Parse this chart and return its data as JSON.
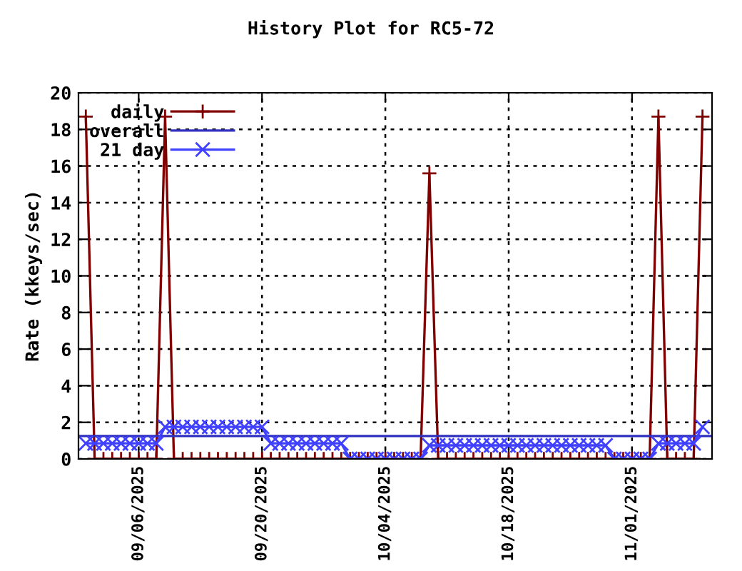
{
  "chart_data": {
    "type": "line",
    "title": "History Plot for RC5-72",
    "ylabel": "Rate (kkeys/sec)",
    "xlim": [
      "2025-08-30T04:00",
      "2025-11-10T02:00"
    ],
    "xticks": [
      {
        "value": "2025-09-06",
        "label": "09/06/2025"
      },
      {
        "value": "2025-09-20",
        "label": "09/20/2025"
      },
      {
        "value": "2025-10-04",
        "label": "10/04/2025"
      },
      {
        "value": "2025-10-18",
        "label": "10/18/2025"
      },
      {
        "value": "2025-11-01",
        "label": "11/01/2025"
      }
    ],
    "ylim": [
      0,
      20
    ],
    "yticks": [
      0,
      2,
      4,
      6,
      8,
      10,
      12,
      14,
      16,
      18,
      20
    ],
    "x": [
      "2025-08-31",
      "2025-09-01",
      "2025-09-02",
      "2025-09-03",
      "2025-09-04",
      "2025-09-05",
      "2025-09-06",
      "2025-09-07",
      "2025-09-08",
      "2025-09-09",
      "2025-09-10",
      "2025-09-11",
      "2025-09-12",
      "2025-09-13",
      "2025-09-14",
      "2025-09-15",
      "2025-09-16",
      "2025-09-17",
      "2025-09-18",
      "2025-09-19",
      "2025-09-20",
      "2025-09-21",
      "2025-09-22",
      "2025-09-23",
      "2025-09-24",
      "2025-09-25",
      "2025-09-26",
      "2025-09-27",
      "2025-09-28",
      "2025-09-29",
      "2025-09-30",
      "2025-10-01",
      "2025-10-02",
      "2025-10-03",
      "2025-10-04",
      "2025-10-05",
      "2025-10-06",
      "2025-10-07",
      "2025-10-08",
      "2025-10-09",
      "2025-10-10",
      "2025-10-11",
      "2025-10-12",
      "2025-10-13",
      "2025-10-14",
      "2025-10-15",
      "2025-10-16",
      "2025-10-17",
      "2025-10-18",
      "2025-10-19",
      "2025-10-20",
      "2025-10-21",
      "2025-10-22",
      "2025-10-23",
      "2025-10-24",
      "2025-10-25",
      "2025-10-26",
      "2025-10-27",
      "2025-10-28",
      "2025-10-29",
      "2025-10-30",
      "2025-10-31",
      "2025-11-01",
      "2025-11-02",
      "2025-11-03",
      "2025-11-04",
      "2025-11-05",
      "2025-11-06",
      "2025-11-07",
      "2025-11-08",
      "2025-11-09"
    ],
    "grid": true,
    "legend": "top left",
    "line_style": "solid",
    "series": [
      {
        "name": "daily",
        "color": "#800000",
        "marker": "plus",
        "values": [
          18.7,
          0,
          0,
          0,
          0,
          0,
          0,
          0,
          0,
          18.7,
          0,
          0,
          0,
          0,
          0,
          0,
          0,
          0,
          0,
          0,
          0,
          0,
          0,
          0,
          0,
          0,
          0,
          0,
          0,
          0,
          0,
          0,
          0,
          0,
          0,
          0,
          0,
          0,
          0,
          15.6,
          0,
          0,
          0,
          0,
          0,
          0,
          0,
          0,
          0,
          0,
          0,
          0,
          0,
          0,
          0,
          0,
          0,
          0,
          0,
          0,
          0,
          0,
          0,
          0,
          0,
          18.7,
          0,
          0,
          0,
          0,
          18.7
        ]
      },
      {
        "name": "overall",
        "color": "#3030c0",
        "marker": "none",
        "x": [
          "2025-08-30T04:00",
          "2025-11-10T02:00"
        ],
        "values": [
          1.25,
          1.25
        ]
      },
      {
        "name": "21 day",
        "color": "#4040ff",
        "marker": "cross",
        "values": [
          0.85,
          0.85,
          0.85,
          0.85,
          0.85,
          0.85,
          0.85,
          0.85,
          0.85,
          1.75,
          1.75,
          1.75,
          1.75,
          1.75,
          1.75,
          1.75,
          1.75,
          1.75,
          1.75,
          1.75,
          1.75,
          0.85,
          0.85,
          0.85,
          0.85,
          0.85,
          0.85,
          0.85,
          0.85,
          0.85,
          0,
          0,
          0,
          0,
          0,
          0,
          0,
          0,
          0,
          0.74,
          0.74,
          0.74,
          0.74,
          0.74,
          0.74,
          0.74,
          0.74,
          0.74,
          0.74,
          0.74,
          0.74,
          0.74,
          0.74,
          0.74,
          0.74,
          0.74,
          0.74,
          0.74,
          0.74,
          0.74,
          0,
          0,
          0,
          0,
          0,
          0.85,
          0.85,
          0.85,
          0.85,
          0.85,
          1.75
        ]
      }
    ]
  }
}
